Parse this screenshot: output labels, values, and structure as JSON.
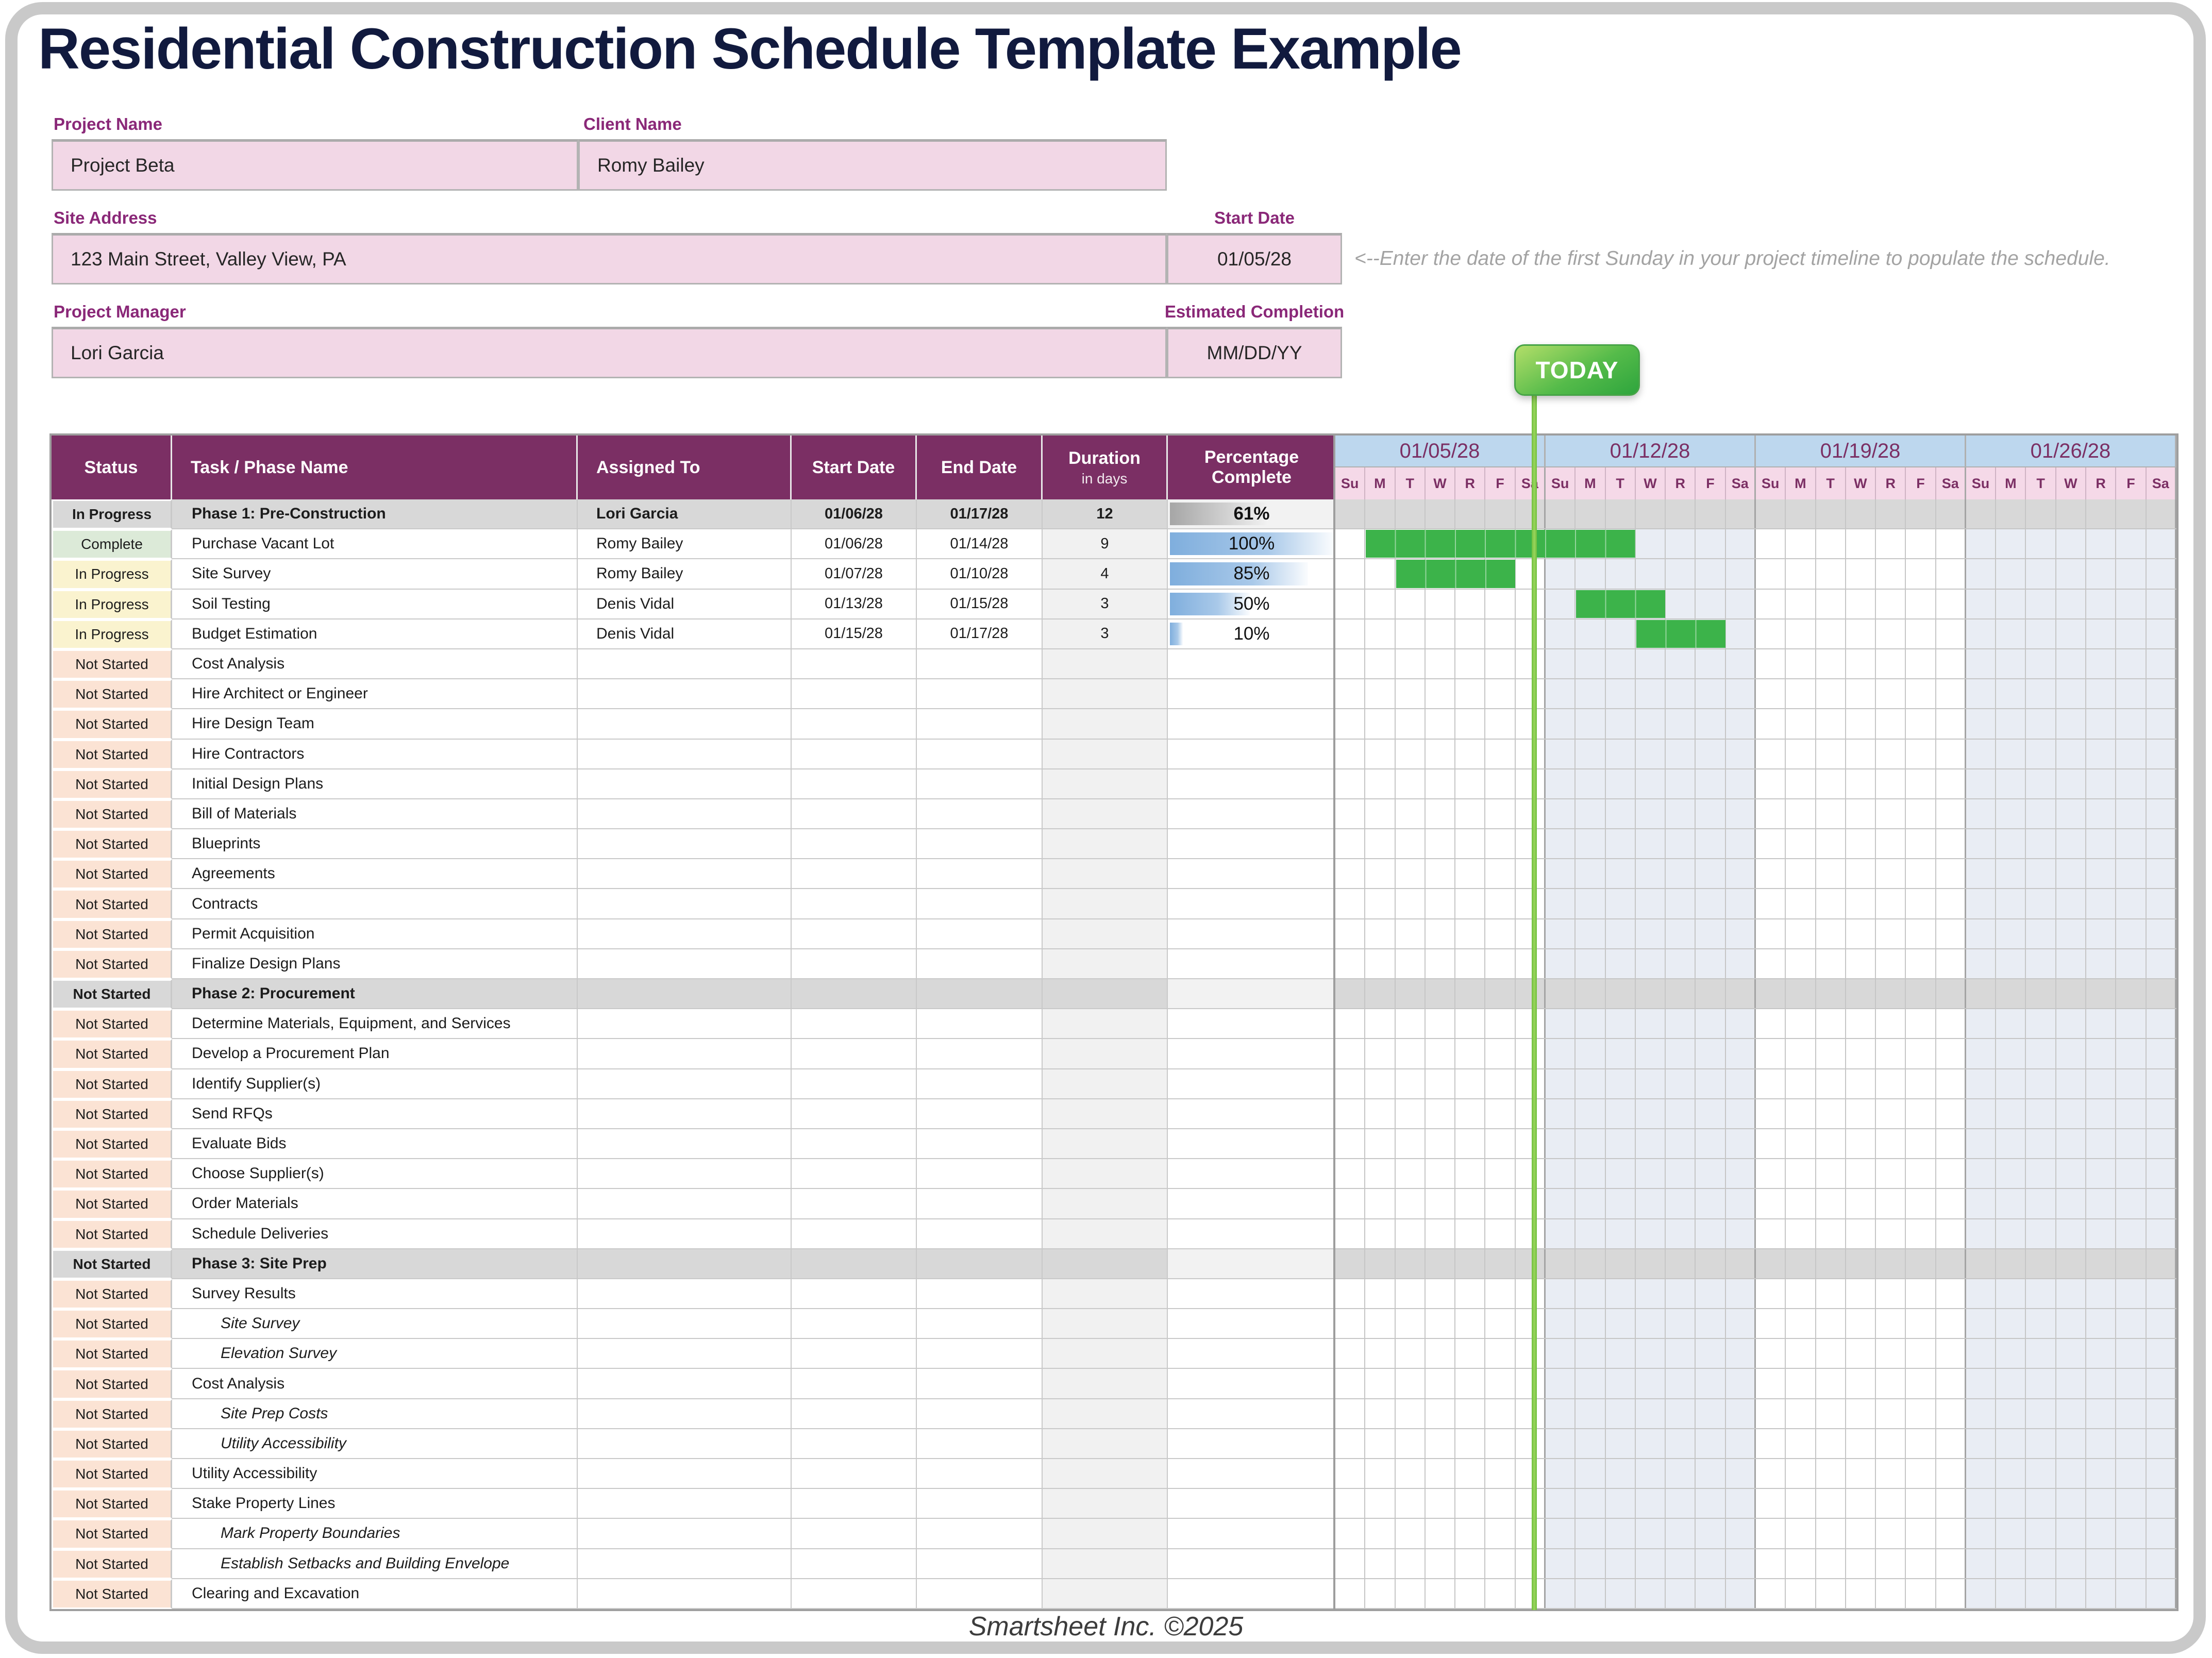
{
  "title": "Residential Construction Schedule Template Example",
  "fields": {
    "project_name": {
      "label": "Project Name",
      "value": "Project Beta"
    },
    "client_name": {
      "label": "Client Name",
      "value": "Romy Bailey"
    },
    "site_address": {
      "label": "Site Address",
      "value": "123 Main Street, Valley View, PA"
    },
    "start_date": {
      "label": "Start Date",
      "value": "01/05/28"
    },
    "project_manager": {
      "label": "Project Manager",
      "value": "Lori Garcia"
    },
    "estimated_completion": {
      "label": "Estimated Completion",
      "value": "MM/DD/YY"
    }
  },
  "note": "<--Enter the date of the first Sunday in your project timeline to populate the schedule.",
  "footer": "Smartsheet Inc. ©2025",
  "table": {
    "headers": {
      "status": "Status",
      "task": "Task / Phase Name",
      "assigned": "Assigned To",
      "start": "Start Date",
      "end": "End Date",
      "duration_line1": "Duration",
      "duration_line2": "in days",
      "pct": "Percentage Complete"
    },
    "rows": [
      {
        "status": "In Progress",
        "status_key": "ip",
        "type": "phase",
        "task": "Phase 1: Pre-Construction",
        "assigned": "Lori Garcia",
        "start": "01/06/28",
        "end": "01/17/28",
        "dur": "12",
        "pct": 61,
        "pct_label": "61%",
        "bar": null
      },
      {
        "status": "Complete",
        "status_key": "c",
        "type": "task",
        "task": "Purchase Vacant Lot",
        "assigned": "Romy Bailey",
        "start": "01/06/28",
        "end": "01/14/28",
        "dur": "9",
        "pct": 100,
        "pct_label": "100%",
        "bar": [
          2,
          9
        ]
      },
      {
        "status": "In Progress",
        "status_key": "ip",
        "type": "task",
        "task": "Site Survey",
        "assigned": "Romy Bailey",
        "start": "01/07/28",
        "end": "01/10/28",
        "dur": "4",
        "pct": 85,
        "pct_label": "85%",
        "bar": [
          3,
          4
        ]
      },
      {
        "status": "In Progress",
        "status_key": "ip",
        "type": "task",
        "task": "Soil Testing",
        "assigned": "Denis Vidal",
        "start": "01/13/28",
        "end": "01/15/28",
        "dur": "3",
        "pct": 50,
        "pct_label": "50%",
        "bar": [
          9,
          3
        ]
      },
      {
        "status": "In Progress",
        "status_key": "ip",
        "type": "task",
        "task": "Budget Estimation",
        "assigned": "Denis Vidal",
        "start": "01/15/28",
        "end": "01/17/28",
        "dur": "3",
        "pct": 10,
        "pct_label": "10%",
        "bar": [
          11,
          3
        ]
      },
      {
        "status": "Not Started",
        "status_key": "ns",
        "type": "task",
        "task": "Cost Analysis",
        "assigned": "",
        "start": "",
        "end": "",
        "dur": "",
        "pct": null,
        "pct_label": "",
        "bar": null
      },
      {
        "status": "Not Started",
        "status_key": "ns",
        "type": "task",
        "task": "Hire Architect or Engineer",
        "assigned": "",
        "start": "",
        "end": "",
        "dur": "",
        "pct": null,
        "pct_label": "",
        "bar": null
      },
      {
        "status": "Not Started",
        "status_key": "ns",
        "type": "task",
        "task": "Hire Design Team",
        "assigned": "",
        "start": "",
        "end": "",
        "dur": "",
        "pct": null,
        "pct_label": "",
        "bar": null
      },
      {
        "status": "Not Started",
        "status_key": "ns",
        "type": "task",
        "task": "Hire Contractors",
        "assigned": "",
        "start": "",
        "end": "",
        "dur": "",
        "pct": null,
        "pct_label": "",
        "bar": null
      },
      {
        "status": "Not Started",
        "status_key": "ns",
        "type": "task",
        "task": "Initial Design Plans",
        "assigned": "",
        "start": "",
        "end": "",
        "dur": "",
        "pct": null,
        "pct_label": "",
        "bar": null
      },
      {
        "status": "Not Started",
        "status_key": "ns",
        "type": "task",
        "task": "Bill of Materials",
        "assigned": "",
        "start": "",
        "end": "",
        "dur": "",
        "pct": null,
        "pct_label": "",
        "bar": null
      },
      {
        "status": "Not Started",
        "status_key": "ns",
        "type": "task",
        "task": "Blueprints",
        "assigned": "",
        "start": "",
        "end": "",
        "dur": "",
        "pct": null,
        "pct_label": "",
        "bar": null
      },
      {
        "status": "Not Started",
        "status_key": "ns",
        "type": "task",
        "task": "Agreements",
        "assigned": "",
        "start": "",
        "end": "",
        "dur": "",
        "pct": null,
        "pct_label": "",
        "bar": null
      },
      {
        "status": "Not Started",
        "status_key": "ns",
        "type": "task",
        "task": "Contracts",
        "assigned": "",
        "start": "",
        "end": "",
        "dur": "",
        "pct": null,
        "pct_label": "",
        "bar": null
      },
      {
        "status": "Not Started",
        "status_key": "ns",
        "type": "task",
        "task": "Permit Acquisition",
        "assigned": "",
        "start": "",
        "end": "",
        "dur": "",
        "pct": null,
        "pct_label": "",
        "bar": null
      },
      {
        "status": "Not Started",
        "status_key": "ns",
        "type": "task",
        "task": "Finalize Design Plans",
        "assigned": "",
        "start": "",
        "end": "",
        "dur": "",
        "pct": null,
        "pct_label": "",
        "bar": null
      },
      {
        "status": "Not Started",
        "status_key": "ns",
        "type": "phase",
        "task": "Phase 2: Procurement",
        "assigned": "",
        "start": "",
        "end": "",
        "dur": "",
        "pct": null,
        "pct_label": "",
        "bar": null
      },
      {
        "status": "Not Started",
        "status_key": "ns",
        "type": "task",
        "task": "Determine Materials, Equipment, and Services",
        "assigned": "",
        "start": "",
        "end": "",
        "dur": "",
        "pct": null,
        "pct_label": "",
        "bar": null
      },
      {
        "status": "Not Started",
        "status_key": "ns",
        "type": "task",
        "task": "Develop a Procurement Plan",
        "assigned": "",
        "start": "",
        "end": "",
        "dur": "",
        "pct": null,
        "pct_label": "",
        "bar": null
      },
      {
        "status": "Not Started",
        "status_key": "ns",
        "type": "task",
        "task": "Identify Supplier(s)",
        "assigned": "",
        "start": "",
        "end": "",
        "dur": "",
        "pct": null,
        "pct_label": "",
        "bar": null
      },
      {
        "status": "Not Started",
        "status_key": "ns",
        "type": "task",
        "task": "Send RFQs",
        "assigned": "",
        "start": "",
        "end": "",
        "dur": "",
        "pct": null,
        "pct_label": "",
        "bar": null
      },
      {
        "status": "Not Started",
        "status_key": "ns",
        "type": "task",
        "task": "Evaluate Bids",
        "assigned": "",
        "start": "",
        "end": "",
        "dur": "",
        "pct": null,
        "pct_label": "",
        "bar": null
      },
      {
        "status": "Not Started",
        "status_key": "ns",
        "type": "task",
        "task": "Choose Supplier(s)",
        "assigned": "",
        "start": "",
        "end": "",
        "dur": "",
        "pct": null,
        "pct_label": "",
        "bar": null
      },
      {
        "status": "Not Started",
        "status_key": "ns",
        "type": "task",
        "task": "Order Materials",
        "assigned": "",
        "start": "",
        "end": "",
        "dur": "",
        "pct": null,
        "pct_label": "",
        "bar": null
      },
      {
        "status": "Not Started",
        "status_key": "ns",
        "type": "task",
        "task": "Schedule Deliveries",
        "assigned": "",
        "start": "",
        "end": "",
        "dur": "",
        "pct": null,
        "pct_label": "",
        "bar": null
      },
      {
        "status": "Not Started",
        "status_key": "ns",
        "type": "phase",
        "task": "Phase 3: Site Prep",
        "assigned": "",
        "start": "",
        "end": "",
        "dur": "",
        "pct": null,
        "pct_label": "",
        "bar": null
      },
      {
        "status": "Not Started",
        "status_key": "ns",
        "type": "task",
        "task": "Survey Results",
        "assigned": "",
        "start": "",
        "end": "",
        "dur": "",
        "pct": null,
        "pct_label": "",
        "bar": null
      },
      {
        "status": "Not Started",
        "status_key": "ns",
        "type": "sub",
        "task": "Site Survey",
        "assigned": "",
        "start": "",
        "end": "",
        "dur": "",
        "pct": null,
        "pct_label": "",
        "bar": null
      },
      {
        "status": "Not Started",
        "status_key": "ns",
        "type": "sub",
        "task": "Elevation Survey",
        "assigned": "",
        "start": "",
        "end": "",
        "dur": "",
        "pct": null,
        "pct_label": "",
        "bar": null
      },
      {
        "status": "Not Started",
        "status_key": "ns",
        "type": "task",
        "task": "Cost Analysis",
        "assigned": "",
        "start": "",
        "end": "",
        "dur": "",
        "pct": null,
        "pct_label": "",
        "bar": null
      },
      {
        "status": "Not Started",
        "status_key": "ns",
        "type": "sub",
        "task": "Site Prep Costs",
        "assigned": "",
        "start": "",
        "end": "",
        "dur": "",
        "pct": null,
        "pct_label": "",
        "bar": null
      },
      {
        "status": "Not Started",
        "status_key": "ns",
        "type": "sub",
        "task": "Utility Accessibility",
        "assigned": "",
        "start": "",
        "end": "",
        "dur": "",
        "pct": null,
        "pct_label": "",
        "bar": null
      },
      {
        "status": "Not Started",
        "status_key": "ns",
        "type": "task",
        "task": "Utility Accessibility",
        "assigned": "",
        "start": "",
        "end": "",
        "dur": "",
        "pct": null,
        "pct_label": "",
        "bar": null
      },
      {
        "status": "Not Started",
        "status_key": "ns",
        "type": "task",
        "task": "Stake Property Lines",
        "assigned": "",
        "start": "",
        "end": "",
        "dur": "",
        "pct": null,
        "pct_label": "",
        "bar": null
      },
      {
        "status": "Not Started",
        "status_key": "ns",
        "type": "sub",
        "task": "Mark Property Boundaries",
        "assigned": "",
        "start": "",
        "end": "",
        "dur": "",
        "pct": null,
        "pct_label": "",
        "bar": null
      },
      {
        "status": "Not Started",
        "status_key": "ns",
        "type": "sub",
        "task": "Establish Setbacks and Building Envelope",
        "assigned": "",
        "start": "",
        "end": "",
        "dur": "",
        "pct": null,
        "pct_label": "",
        "bar": null
      },
      {
        "status": "Not Started",
        "status_key": "ns",
        "type": "task",
        "task": "Clearing and Excavation",
        "assigned": "",
        "start": "",
        "end": "",
        "dur": "",
        "pct": null,
        "pct_label": "",
        "bar": null
      }
    ]
  },
  "gantt": {
    "weeks": [
      "01/05/28",
      "01/12/28",
      "01/19/28",
      "01/26/28"
    ],
    "day_letters": [
      "Su",
      "M",
      "T",
      "W",
      "R",
      "F",
      "Sa"
    ],
    "today_label": "TODAY",
    "today_day_offset": 6.62
  },
  "colors": {
    "title_navy": "#111a3e",
    "label_magenta": "#8a2878",
    "field_pink": "#f2d7e6",
    "header_purple": "#7b2f64",
    "week_header_blue": "#bdd7ee",
    "day_row_pink": "#f5d9e8",
    "status_in_progress": "#faf3cf",
    "status_complete": "#dcead8",
    "status_not_started": "#fbe3d4",
    "phase_row_gray": "#d8d8d8",
    "week_shade": "#e9edf4",
    "gantt_bar_green": "#3cb34a",
    "today_green": "#7dc243",
    "progress_bar_blue": "#7faedd",
    "progress_bar_gray": "#a6a6a6"
  }
}
